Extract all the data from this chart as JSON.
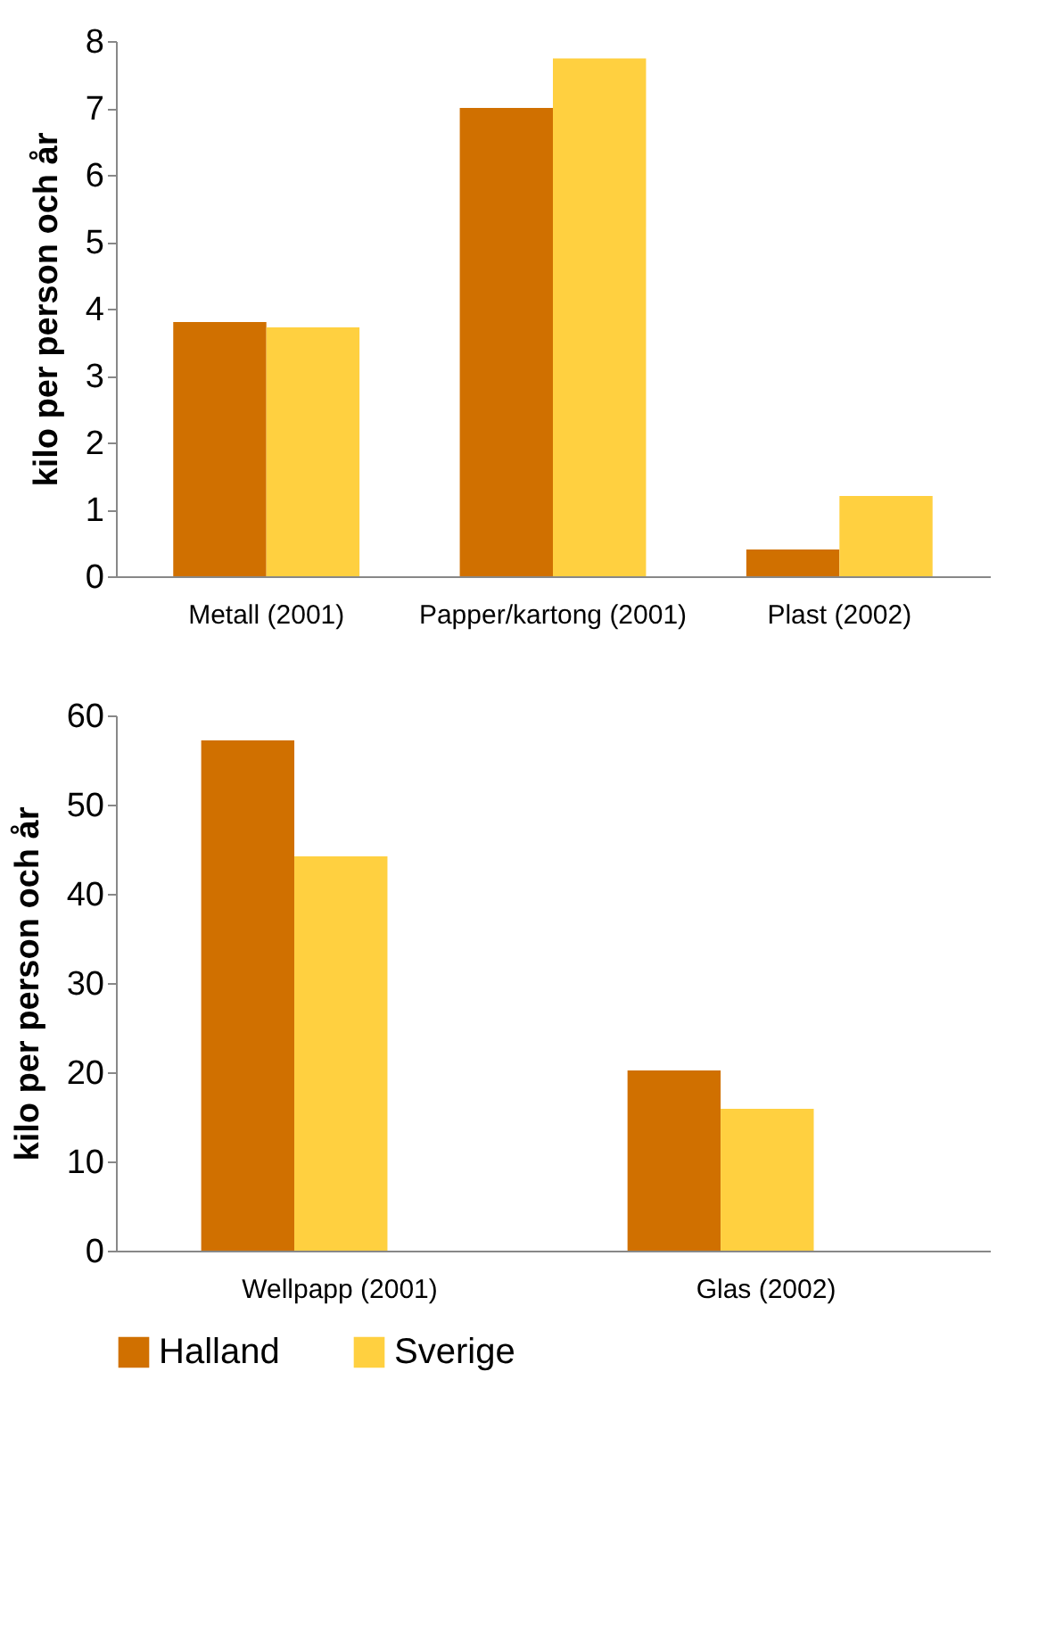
{
  "chart_data": [
    {
      "type": "bar",
      "ylabel": "kilo per person och år",
      "categories": [
        "Metall (2001)",
        "Papper/kartong (2001)",
        "Plast (2002)"
      ],
      "series": [
        {
          "name": "Halland",
          "color": "#d07000",
          "values": [
            3.8,
            7.0,
            0.4
          ]
        },
        {
          "name": "Sverige",
          "color": "#ffd040",
          "values": [
            3.72,
            7.74,
            1.2
          ]
        }
      ],
      "ylim": [
        0,
        8
      ],
      "yticks": [
        0,
        1,
        2,
        3,
        4,
        5,
        6,
        7,
        8
      ],
      "grid": false,
      "legend": "bottom"
    },
    {
      "type": "bar",
      "ylabel": "kilo per person och år",
      "categories": [
        "Wellpapp (2001)",
        "Glas (2002)"
      ],
      "series": [
        {
          "name": "Halland",
          "color": "#d07000",
          "values": [
            57.2,
            20.2
          ]
        },
        {
          "name": "Sverige",
          "color": "#ffd040",
          "values": [
            44.2,
            15.9
          ]
        }
      ],
      "ylim": [
        0,
        60
      ],
      "yticks": [
        0,
        10,
        20,
        30,
        40,
        50,
        60
      ],
      "grid": false,
      "legend": "bottom"
    }
  ]
}
